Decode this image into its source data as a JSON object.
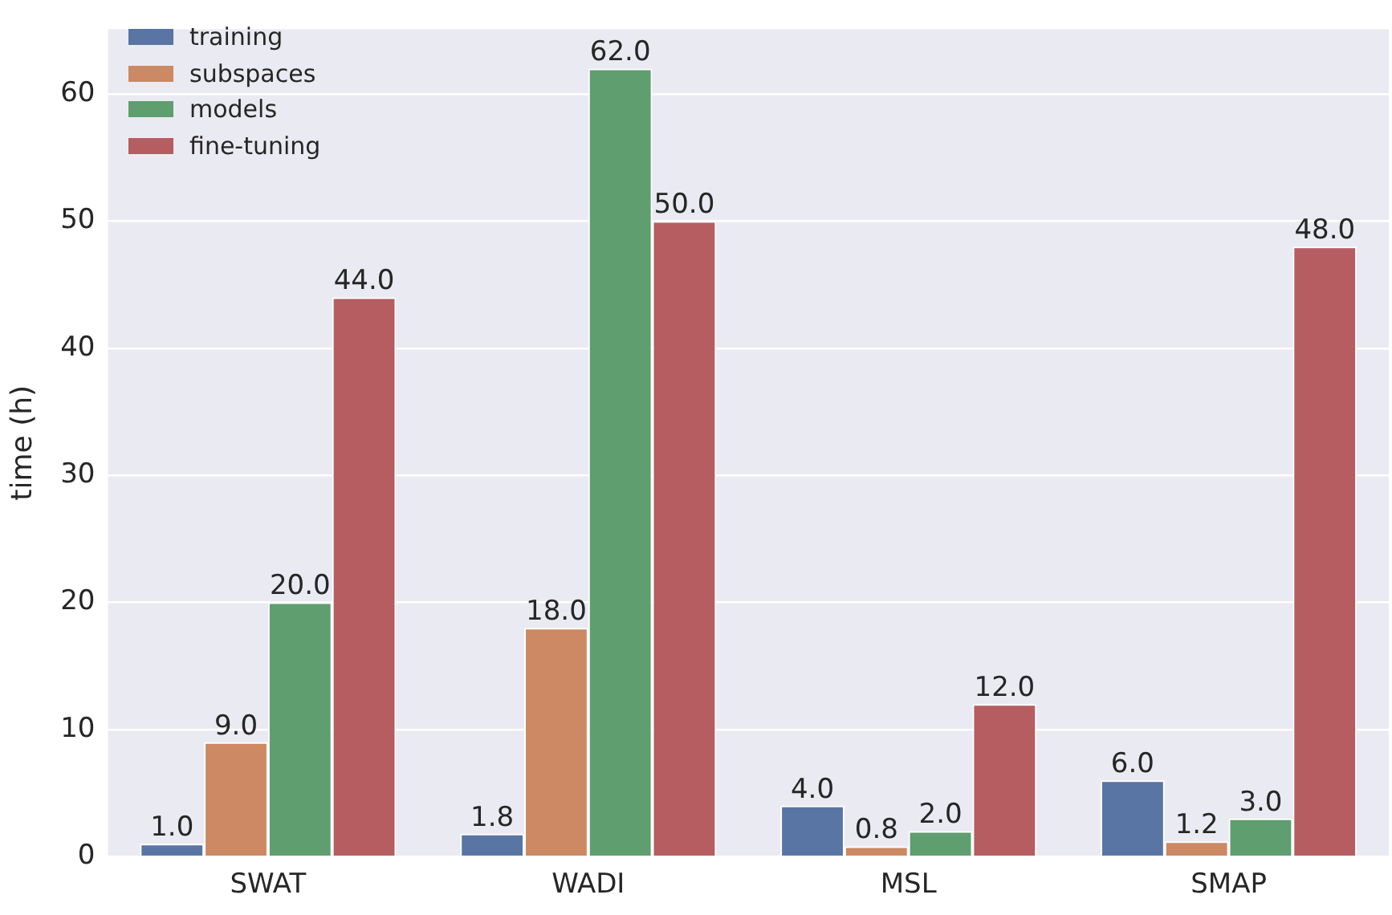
{
  "chart_data": {
    "type": "bar",
    "ylabel": "time (h)",
    "categories": [
      "SWAT",
      "WADI",
      "MSL",
      "SMAP"
    ],
    "series": [
      {
        "name": "training",
        "color": "#5875a4",
        "values": [
          1.0,
          1.8,
          4.0,
          6.0
        ],
        "value_labels": [
          "1.0",
          "1.8",
          "4.0",
          "6.0"
        ]
      },
      {
        "name": "subspaces",
        "color": "#cc8963",
        "values": [
          9.0,
          18.0,
          0.8,
          1.2
        ],
        "value_labels": [
          "9.0",
          "18.0",
          "0.8",
          "1.2"
        ]
      },
      {
        "name": "models",
        "color": "#5f9e6e",
        "values": [
          20.0,
          62.0,
          2.0,
          3.0
        ],
        "value_labels": [
          "20.0",
          "62.0",
          "2.0",
          "3.0"
        ]
      },
      {
        "name": "fine-tuning",
        "color": "#b55d60",
        "values": [
          44.0,
          50.0,
          12.0,
          48.0
        ],
        "value_labels": [
          "44.0",
          "50.0",
          "12.0",
          "48.0"
        ]
      }
    ],
    "ylim": [
      0,
      65.1
    ],
    "yticks": [
      0,
      10,
      20,
      30,
      40,
      50,
      60
    ],
    "grid": "y",
    "legend": "top left"
  }
}
